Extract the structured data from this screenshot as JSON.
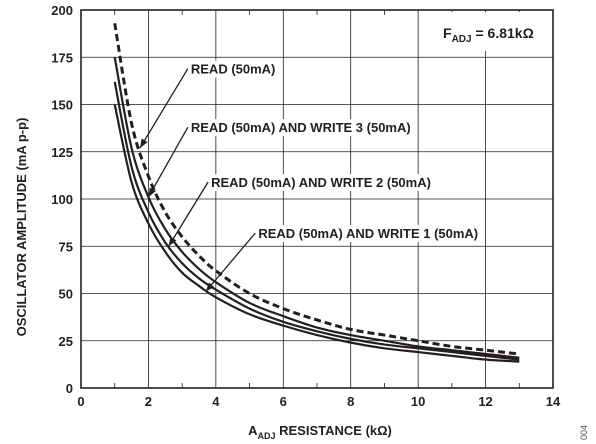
{
  "chart_data": {
    "type": "line",
    "xlabel_main": "A",
    "xlabel_sub": "ADJ",
    "xlabel_rest": " RESISTANCE (kΩ)",
    "ylabel": "OSCILLATOR AMPLITUDE (mA p-p)",
    "xlim": [
      0,
      14
    ],
    "ylim": [
      0,
      200
    ],
    "xticks": [
      0,
      2,
      4,
      6,
      8,
      10,
      12,
      14
    ],
    "yticks": [
      0,
      25,
      50,
      75,
      100,
      125,
      150,
      175,
      200
    ],
    "grid": true,
    "legend_box": {
      "main": "F",
      "sub": "ADJ",
      "rest": " = 6.81kΩ"
    },
    "figure_id": "004",
    "colors": {
      "line": "#231f20",
      "grid": "#231f20"
    },
    "series": [
      {
        "name": "READ (50mA)",
        "style": "dashed",
        "x": [
          1.0,
          1.5,
          2.0,
          2.5,
          3.0,
          3.5,
          4.0,
          5.0,
          6.0,
          7.0,
          8.0,
          9.0,
          10.0,
          11.0,
          12.0,
          13.0
        ],
        "y": [
          193,
          140,
          112,
          93,
          80,
          70,
          62,
          50,
          42,
          36,
          31,
          28,
          25,
          22,
          20,
          18
        ]
      },
      {
        "name": "READ (50mA) AND WRITE 3 (50mA)",
        "style": "solid",
        "x": [
          1.0,
          1.5,
          2.0,
          2.5,
          3.0,
          3.5,
          4.0,
          5.0,
          6.0,
          7.0,
          8.0,
          9.0,
          10.0,
          11.0,
          12.0,
          13.0
        ],
        "y": [
          175,
          127,
          101,
          84,
          72,
          63,
          56,
          45,
          38,
          32,
          28,
          25,
          22,
          20,
          18,
          16
        ]
      },
      {
        "name": "READ (50mA) AND WRITE 2 (50mA)",
        "style": "solid",
        "x": [
          1.0,
          1.5,
          2.0,
          2.5,
          3.0,
          3.5,
          4.0,
          5.0,
          6.0,
          7.0,
          8.0,
          9.0,
          10.0,
          11.0,
          12.0,
          13.0
        ],
        "y": [
          162,
          117,
          93,
          77,
          66,
          58,
          52,
          42,
          35,
          30,
          26,
          23,
          21,
          19,
          17,
          15
        ]
      },
      {
        "name": "READ (50mA) AND WRITE 1 (50mA)",
        "style": "solid",
        "x": [
          1.0,
          1.5,
          2.0,
          2.5,
          3.0,
          3.5,
          4.0,
          5.0,
          6.0,
          7.0,
          8.0,
          9.0,
          10.0,
          11.0,
          12.0,
          13.0
        ],
        "y": [
          150,
          109,
          87,
          72,
          61,
          54,
          48,
          39,
          33,
          28,
          24,
          21,
          19,
          17,
          15,
          14
        ]
      }
    ],
    "annotations": [
      {
        "text": "READ (50mA)",
        "series": 0,
        "label_x": 3.2,
        "label_y": 169,
        "point_x": 1.75,
        "point_y": 127
      },
      {
        "text": "READ (50mA) AND WRITE 3 (50mA)",
        "series": 1,
        "label_x": 3.2,
        "label_y": 138,
        "point_x": 2.0,
        "point_y": 101
      },
      {
        "text": "READ (50mA) AND WRITE 2 (50mA)",
        "series": 2,
        "label_x": 3.8,
        "label_y": 109,
        "point_x": 2.6,
        "point_y": 75
      },
      {
        "text": "READ (50mA) AND WRITE 1 (50mA)",
        "series": 3,
        "label_x": 5.2,
        "label_y": 82,
        "point_x": 3.7,
        "point_y": 51
      }
    ]
  }
}
